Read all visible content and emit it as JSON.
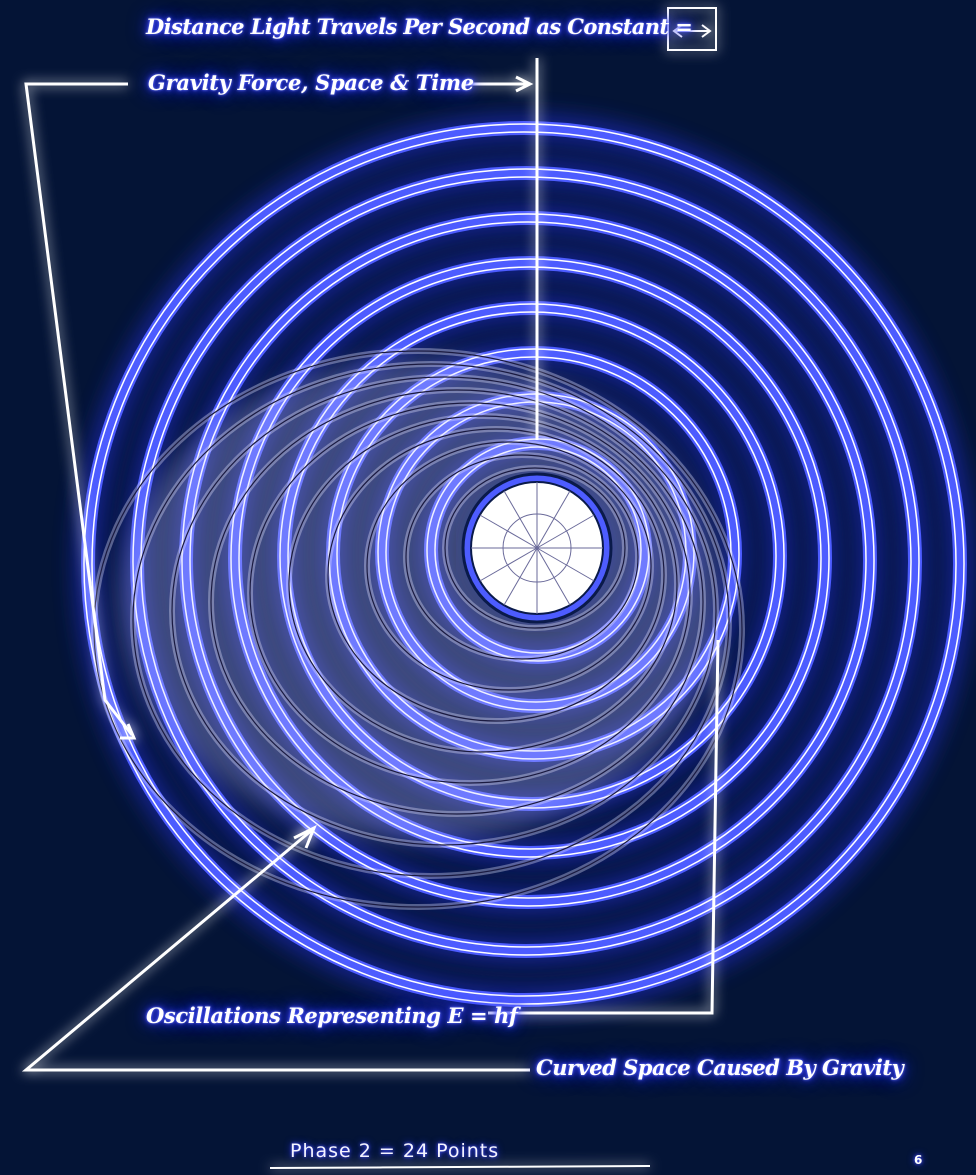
{
  "diagram": {
    "labels": {
      "distance": "Distance Light Travels Per Second as Constant =",
      "gravity": "Gravity Force, Space & Time",
      "oscillations": "Oscillations Representing E = hf",
      "curved_space": "Curved Space Caused By Gravity",
      "phase": "Phase 2 = 24 Points",
      "page_number": "6"
    },
    "colors": {
      "background": "#041436",
      "glow": "#2a35ff",
      "band": "#4d5cff",
      "line": "#ffffff",
      "core": "#0a1a4a"
    },
    "icons": {
      "constant_marker": "double-arrow-icon"
    }
  }
}
